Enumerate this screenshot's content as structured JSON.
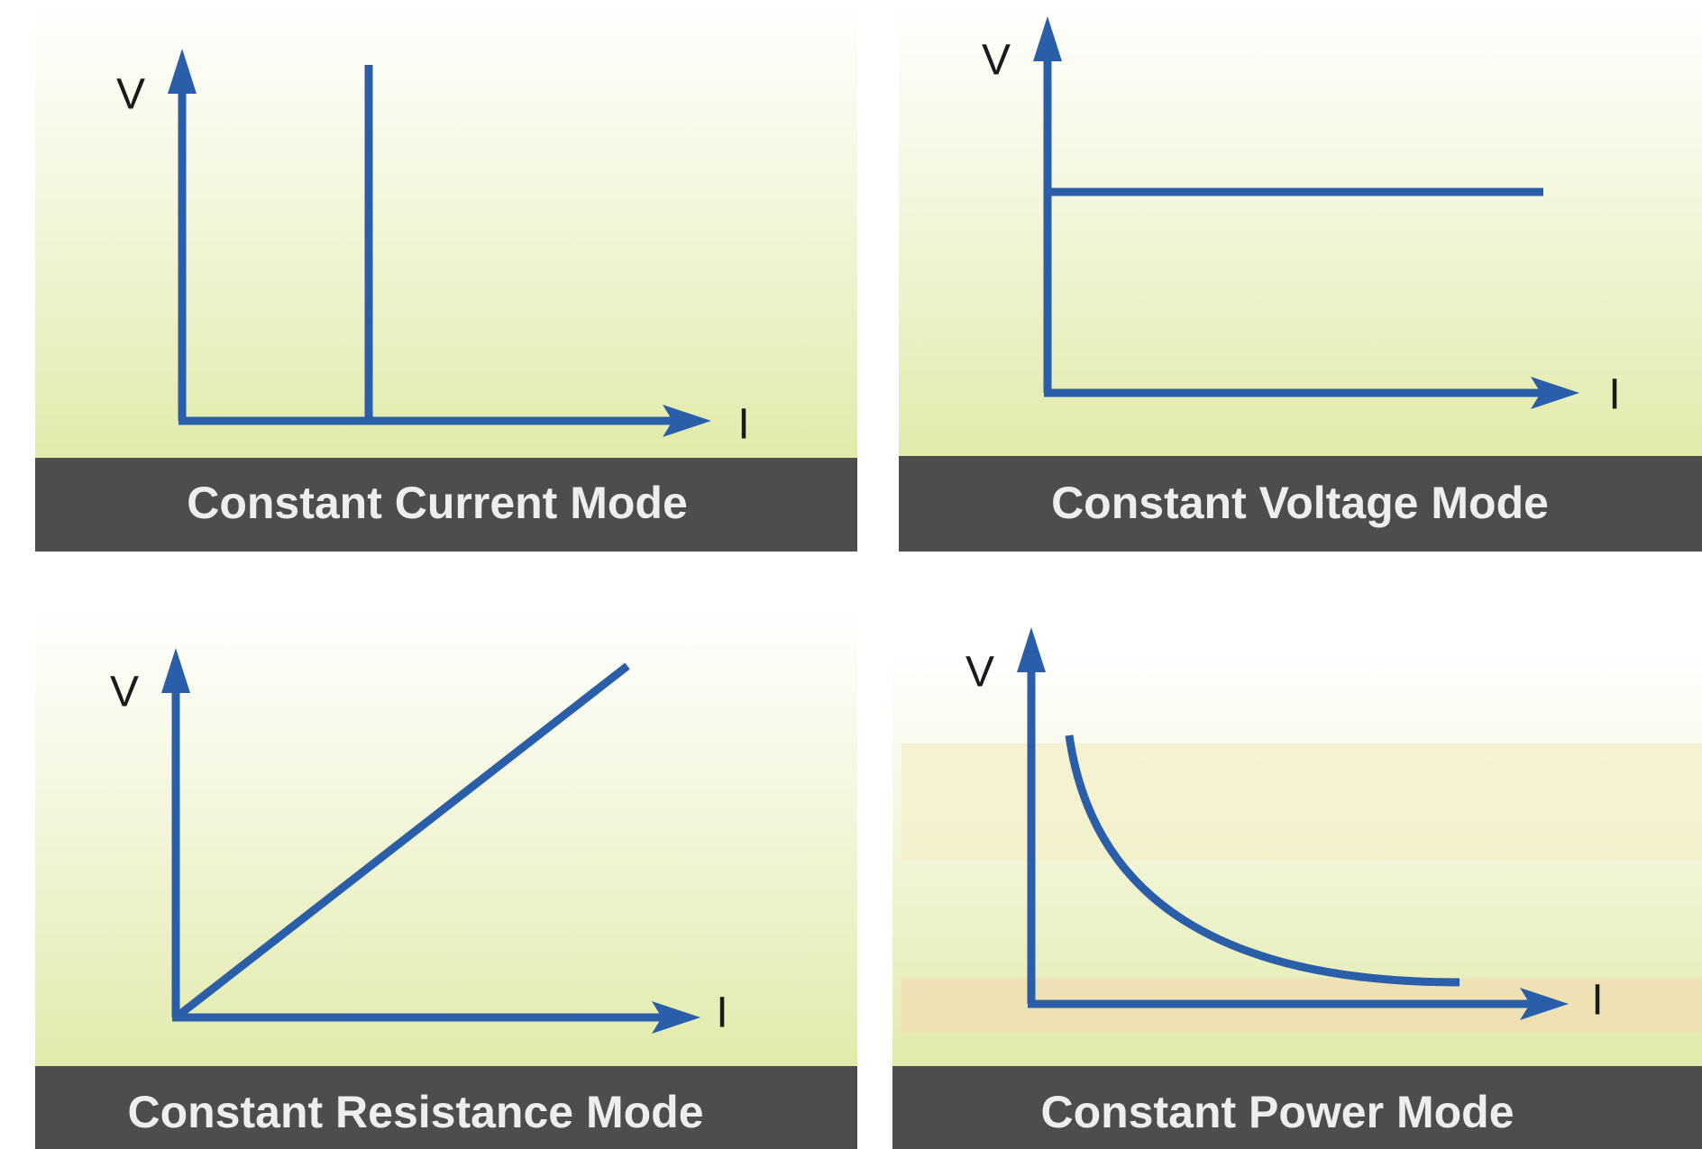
{
  "panels": [
    {
      "title": "Constant Current Mode",
      "y_label": "V",
      "x_label": "I"
    },
    {
      "title": "Constant Voltage Mode",
      "y_label": "V",
      "x_label": "I"
    },
    {
      "title": "Constant Resistance Mode",
      "y_label": "V",
      "x_label": "I"
    },
    {
      "title": "Constant Power Mode",
      "y_label": "V",
      "x_label": "I"
    }
  ]
}
